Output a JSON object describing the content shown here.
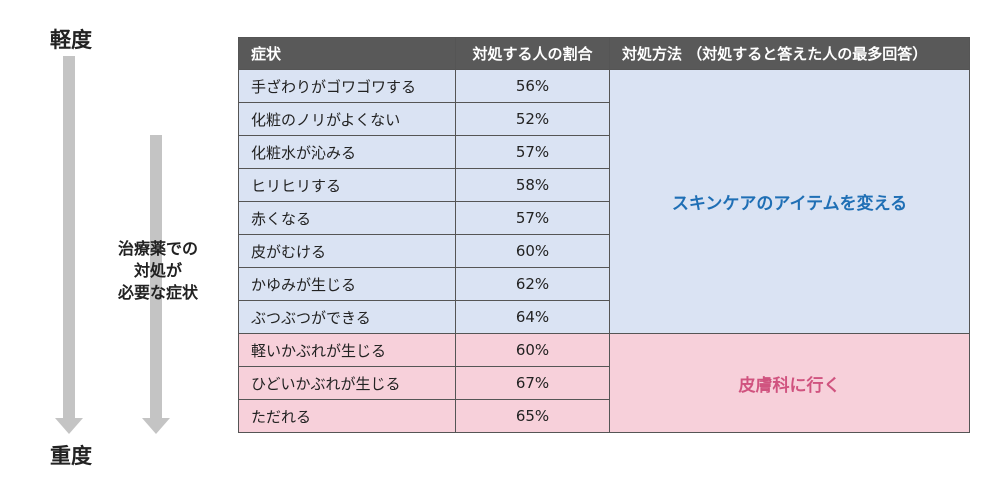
{
  "severity": {
    "light": "軽度",
    "heavy": "重度"
  },
  "side_note": [
    "治療薬での",
    "対処が",
    "必要な症状"
  ],
  "table": {
    "headers": [
      "症状",
      "対処する人の割合",
      "対処方法 （対処すると答えた人の最多回答）"
    ],
    "rows": [
      {
        "symptom": "手ざわりがゴワゴワする",
        "pct": "56%"
      },
      {
        "symptom": "化粧のノリがよくない",
        "pct": "52%"
      },
      {
        "symptom": "化粧水が沁みる",
        "pct": "57%"
      },
      {
        "symptom": "ヒリヒリする",
        "pct": "58%"
      },
      {
        "symptom": "赤くなる",
        "pct": "57%"
      },
      {
        "symptom": "皮がむける",
        "pct": "60%"
      },
      {
        "symptom": "かゆみが生じる",
        "pct": "62%"
      },
      {
        "symptom": "ぶつぶつができる",
        "pct": "64%"
      },
      {
        "symptom": "軽いかぶれが生じる",
        "pct": "60%"
      },
      {
        "symptom": "ひどいかぶれが生じる",
        "pct": "67%"
      },
      {
        "symptom": "ただれる",
        "pct": "65%"
      }
    ],
    "methods": {
      "skincare": "スキンケアのアイテムを変える",
      "dermatology": "皮膚科に行く"
    },
    "colors": {
      "header": "#595959",
      "blue": "#dae3f3",
      "pink": "#f7d0da",
      "blue_text": "#1f6fb5",
      "pink_text": "#d0537f"
    }
  }
}
